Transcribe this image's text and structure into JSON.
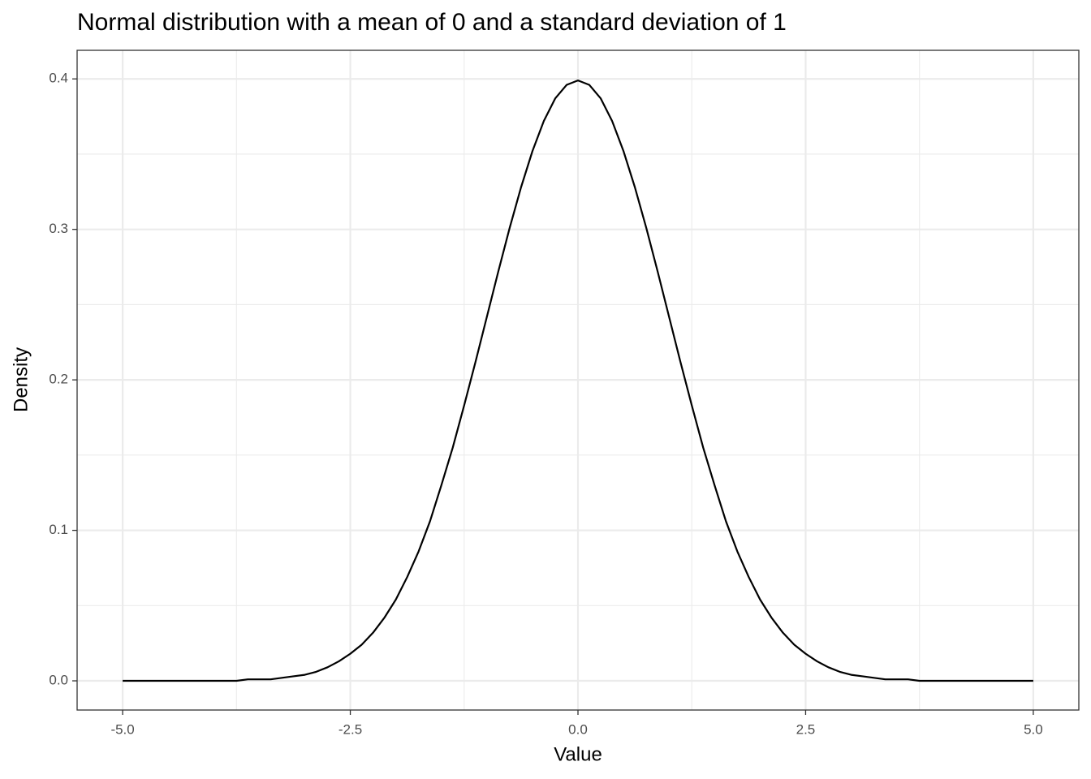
{
  "chart_data": {
    "type": "line",
    "title": "Normal distribution with a mean of 0 and a standard deviation of 1",
    "x_label": "Value",
    "y_label": "Density",
    "x": [
      -5,
      -4.875,
      -4.75,
      -4.625,
      -4.5,
      -4.375,
      -4.25,
      -4.125,
      -4,
      -3.875,
      -3.75,
      -3.625,
      -3.5,
      -3.375,
      -3.25,
      -3.125,
      -3,
      -2.875,
      -2.75,
      -2.625,
      -2.5,
      -2.375,
      -2.25,
      -2.125,
      -2,
      -1.875,
      -1.75,
      -1.625,
      -1.5,
      -1.375,
      -1.25,
      -1.125,
      -1,
      -0.875,
      -0.75,
      -0.625,
      -0.5,
      -0.375,
      -0.25,
      -0.125,
      0,
      0.125,
      0.25,
      0.375,
      0.5,
      0.625,
      0.75,
      0.875,
      1,
      1.125,
      1.25,
      1.375,
      1.5,
      1.625,
      1.75,
      1.875,
      2,
      2.125,
      2.25,
      2.375,
      2.5,
      2.625,
      2.75,
      2.875,
      3,
      3.125,
      3.25,
      3.375,
      3.5,
      3.625,
      3.75,
      3.875,
      4,
      4.125,
      4.25,
      4.375,
      4.5,
      4.625,
      4.75,
      4.875,
      5
    ],
    "series": [
      {
        "color": "#000000",
        "values": [
          0,
          0,
          0,
          0,
          0,
          0,
          0,
          0,
          0,
          0,
          0,
          0.001,
          0.001,
          0.001,
          0.002,
          0.003,
          0.004,
          0.006,
          0.009,
          0.013,
          0.018,
          0.024,
          0.032,
          0.042,
          0.054,
          0.069,
          0.086,
          0.106,
          0.13,
          0.155,
          0.183,
          0.212,
          0.242,
          0.272,
          0.301,
          0.328,
          0.352,
          0.372,
          0.387,
          0.396,
          0.399,
          0.396,
          0.387,
          0.372,
          0.352,
          0.328,
          0.301,
          0.272,
          0.242,
          0.212,
          0.183,
          0.155,
          0.13,
          0.106,
          0.086,
          0.069,
          0.054,
          0.042,
          0.032,
          0.024,
          0.018,
          0.013,
          0.009,
          0.006,
          0.004,
          0.003,
          0.002,
          0.001,
          0.001,
          0.001,
          0,
          0,
          0,
          0,
          0,
          0,
          0,
          0,
          0,
          0,
          0
        ]
      }
    ],
    "xlim": [
      -5.5,
      5.5
    ],
    "ylim": [
      -0.0194,
      0.419
    ],
    "xticks": [
      {
        "value": -5,
        "label": "-5.0"
      },
      -2.5,
      {
        "value": 0,
        "label": "0.0"
      },
      2.5,
      {
        "value": 5,
        "label": "5.0"
      }
    ],
    "yticks": [
      {
        "value": 0,
        "label": "0.0"
      },
      0.1,
      0.2,
      0.3,
      0.4
    ],
    "grid": true
  }
}
